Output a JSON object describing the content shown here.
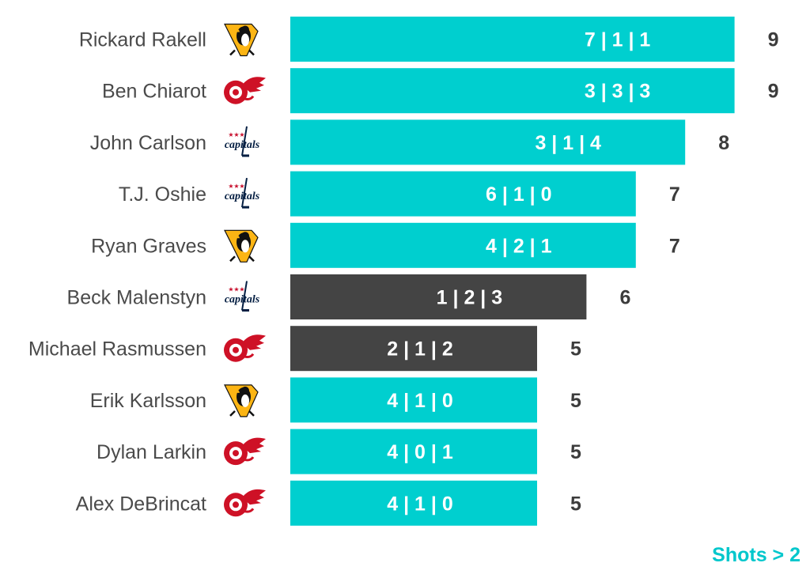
{
  "chart_data": {
    "type": "bar",
    "orientation": "horizontal",
    "categories": [
      "Rickard Rakell",
      "Ben Chiarot",
      "John Carlson",
      "T.J. Oshie",
      "Ryan Graves",
      "Beck Malenstyn",
      "Michael Rasmussen",
      "Erik Karlsson",
      "Dylan Larkin",
      "Alex DeBrincat"
    ],
    "teams": [
      "penguins",
      "red-wings",
      "capitals",
      "capitals",
      "penguins",
      "capitals",
      "red-wings",
      "penguins",
      "red-wings",
      "red-wings"
    ],
    "values": [
      9,
      9,
      8,
      7,
      7,
      6,
      5,
      5,
      5,
      5
    ],
    "bar_labels": [
      "7 | 1 | 1",
      "3 | 3 | 3",
      "3 | 1 | 4",
      "6 | 1 | 0",
      "4 | 2 | 1",
      "1 | 2 | 3",
      "2 | 1 | 2",
      "4 | 1 | 0",
      "4 | 0 | 1",
      "4 | 1 | 0"
    ],
    "highlight": [
      false,
      false,
      false,
      false,
      false,
      true,
      true,
      false,
      false,
      false
    ],
    "xlim": [
      0,
      9
    ],
    "grid": false,
    "colors": {
      "primary": "#00cfcf",
      "highlight": "#444444"
    }
  },
  "logos": {
    "capitals_text": "capitals"
  },
  "footnote": "Shots > 2"
}
